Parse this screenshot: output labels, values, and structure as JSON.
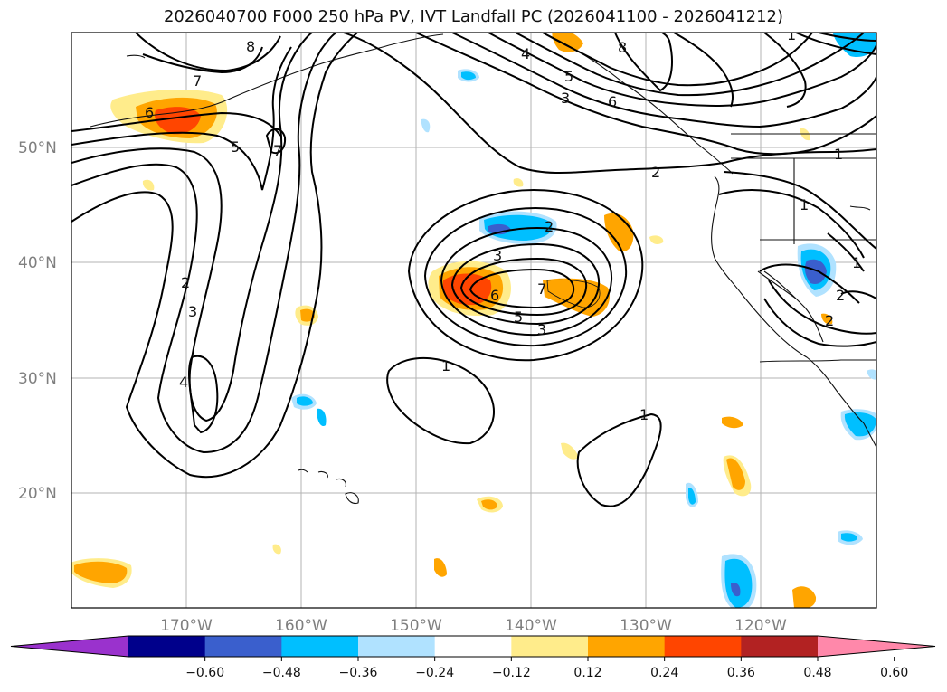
{
  "title": "2026040700 F000 250 hPa PV, IVT Landfall PC (2026041100 - 2026041212)",
  "latitude_labels": [
    "50°N",
    "40°N",
    "30°N",
    "20°N"
  ],
  "longitude_labels": [
    "170°W",
    "160°W",
    "150°W",
    "140°W",
    "130°W",
    "120°W"
  ],
  "contour_labels": [
    "8",
    "7",
    "6",
    "5",
    "7",
    "4",
    "3",
    "2",
    "8",
    "6",
    "5",
    "3",
    "4",
    "5",
    "6",
    "7",
    "2",
    "3",
    "2",
    "1",
    "1",
    "2",
    "1",
    "2",
    "3",
    "1",
    "1",
    "1"
  ],
  "colorbar": {
    "ticks": [
      "−0.60",
      "−0.48",
      "−0.36",
      "−0.24",
      "−0.12",
      "0.12",
      "0.24",
      "0.36",
      "0.48",
      "0.60"
    ],
    "colors": [
      "#9a32cd",
      "#00008b",
      "#3a5fcd",
      "#00bfff",
      "#b0e2ff",
      "#ffffff",
      "#ffec8b",
      "#ffa500",
      "#ff4500",
      "#b22222",
      "#ff88aa"
    ],
    "extend": "both"
  }
}
